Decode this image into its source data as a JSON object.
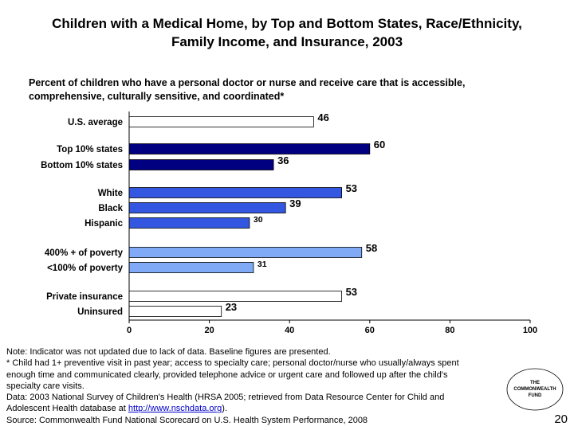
{
  "title": {
    "line1": "Children with a Medical Home, by Top and Bottom States, Race/Ethnicity,",
    "line2": "Family Income, and Insurance, 2003"
  },
  "chart_data": {
    "type": "bar",
    "orientation": "horizontal",
    "subtitle_line1": "Percent of children who have a personal doctor or nurse and receive care that is accessible,",
    "subtitle_line2": "comprehensive, culturally sensitive, and coordinated*",
    "xlim": [
      0,
      100
    ],
    "x_ticks": [
      "0",
      "20",
      "40",
      "60",
      "80",
      "100"
    ],
    "grid": false,
    "legend": "none",
    "bars": [
      {
        "label": "U.S. average",
        "value": 46,
        "color": "#ffffff"
      },
      {
        "label": "Top 10% states",
        "value": 60,
        "color": "#000080"
      },
      {
        "label": "Bottom 10% states",
        "value": 36,
        "color": "#000080"
      },
      {
        "label": "White",
        "value": 53,
        "color": "#3357e0"
      },
      {
        "label": "Black",
        "value": 39,
        "color": "#3357e0"
      },
      {
        "label": "Hispanic",
        "value": 30,
        "color": "#3357e0"
      },
      {
        "label": "400% + of poverty",
        "value": 58,
        "color": "#80aaf5"
      },
      {
        "label": "<100% of poverty",
        "value": 31,
        "color": "#80aaf5"
      },
      {
        "label": "Private insurance",
        "value": 53,
        "color": "#ffffff"
      },
      {
        "label": "Uninsured",
        "value": 23,
        "color": "#ffffff"
      }
    ]
  },
  "notes": {
    "line1": "Note: Indicator was not updated due to lack of data. Baseline figures are presented.",
    "line2": "* Child had 1+ preventive visit in past year; access to specialty care; personal doctor/nurse who usually/always spent",
    "line3": "enough time and communicated clearly, provided telephone advice or urgent care and followed up after the child's",
    "line4": "specialty care visits.",
    "line5": "Data: 2003 National Survey of Children's Health (HRSA 2005; retrieved from Data Resource Center for Child and",
    "line6_pre": "Adolescent Health database at ",
    "line6_link": "http://www.nschdata.org",
    "line6_post": ").",
    "line7": "Source: Commonwealth Fund National Scorecard on U.S. Health System Performance, 2008"
  },
  "logo": {
    "line1": "THE",
    "line2": "COMMONWEALTH",
    "line3": "FUND"
  },
  "page_number": "20"
}
